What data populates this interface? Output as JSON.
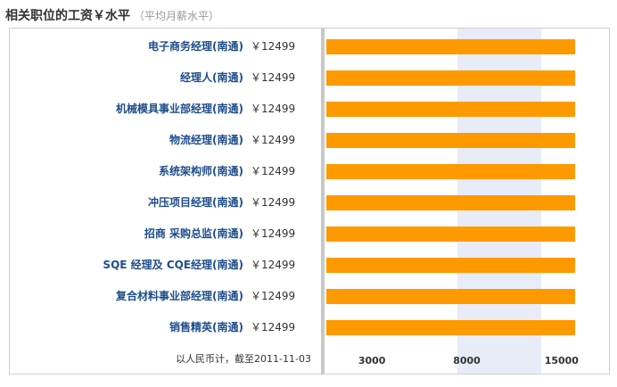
{
  "header": {
    "title": "相关职位的工资￥水平",
    "subtitle": "（平均月薪水平）"
  },
  "footnote": "以人民币计，截至2011-11-03",
  "colors": {
    "bar": "#ff9900",
    "band": "#e8ecf8",
    "label": "#1e4d8c"
  },
  "chart_data": {
    "type": "bar",
    "orientation": "horizontal",
    "title": "相关职位的工资￥水平",
    "subtitle": "（平均月薪水平）",
    "categories": [
      "电子商务经理(南通)",
      "经理人(南通)",
      "机械模具事业部经理(南通)",
      "物流经理(南通)",
      "系统架构师(南通)",
      "冲压项目经理(南通)",
      "招商 采购总监(南通)",
      "SQE 经理及 CQE经理(南通)",
      "复合材料事业部经理(南通)",
      "销售精英(南通)"
    ],
    "value_labels": [
      "￥12499",
      "￥12499",
      "￥12499",
      "￥12499",
      "￥12499",
      "￥12499",
      "￥12499",
      "￥12499",
      "￥12499",
      "￥12499"
    ],
    "values": [
      12499,
      12499,
      12499,
      12499,
      12499,
      12499,
      12499,
      12499,
      12499,
      12499
    ],
    "ticks": [
      "3000",
      "8000",
      "15000"
    ],
    "tick_values": [
      3000,
      8000,
      15000
    ],
    "highlight_band": [
      5000,
      10000
    ],
    "xlim": [
      0,
      15000
    ],
    "grid": false
  }
}
